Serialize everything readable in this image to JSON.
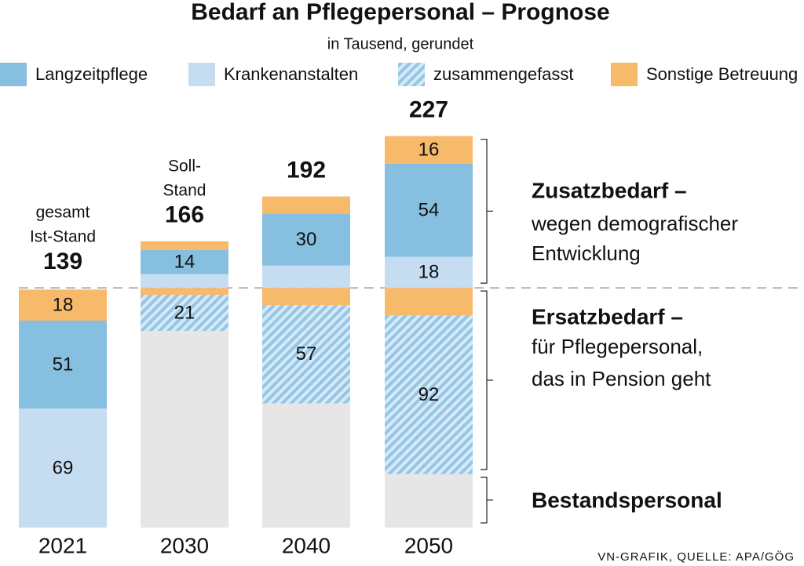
{
  "chart_data": {
    "type": "stacked-bar",
    "title": "Bedarf an Pflegepersonal – Prognose",
    "subtitle": "in Tausend, gerundet",
    "legend": [
      {
        "name": "Langzeitpflege",
        "color": "#86bfe0"
      },
      {
        "name": "Krankenanstalten",
        "color": "#c6dcf0"
      },
      {
        "name": "zusammengefasst",
        "color": "hatch"
      },
      {
        "name": "Sonstige Betreuung",
        "color": "#f7b96a"
      }
    ],
    "bars": [
      {
        "category": "2021",
        "total": 139,
        "note": [
          "gesamt",
          "Ist-Stand"
        ],
        "segments": [
          {
            "value": 69,
            "color": "#c6dcf0",
            "labeled": true
          },
          {
            "value": 51,
            "color": "#86bfe0",
            "labeled": true
          },
          {
            "value": 18,
            "color": "#f7b96a",
            "labeled": true
          }
        ]
      },
      {
        "category": "2030",
        "total": 166,
        "note": [
          "Soll-",
          "Stand"
        ],
        "segments": [
          {
            "value": 114,
            "color": "#e6e6e6",
            "labeled": false
          },
          {
            "value": 21,
            "color": "hatch",
            "labeled": true
          },
          {
            "value": 4,
            "color": "#f7b96a",
            "labeled": false
          },
          {
            "value": 8,
            "color": "#c6dcf0",
            "labeled": false
          },
          {
            "value": 14,
            "color": "#86bfe0",
            "labeled": true
          },
          {
            "value": 5,
            "color": "#f7b96a",
            "labeled": false
          }
        ]
      },
      {
        "category": "2040",
        "total": 192,
        "segments": [
          {
            "value": 72,
            "color": "#e6e6e6",
            "labeled": false
          },
          {
            "value": 57,
            "color": "hatch",
            "labeled": true
          },
          {
            "value": 10,
            "color": "#f7b96a",
            "labeled": false
          },
          {
            "value": 13,
            "color": "#c6dcf0",
            "labeled": false
          },
          {
            "value": 30,
            "color": "#86bfe0",
            "labeled": true
          },
          {
            "value": 10,
            "color": "#f7b96a",
            "labeled": false
          }
        ]
      },
      {
        "category": "2050",
        "total": 227,
        "segments": [
          {
            "value": 31,
            "color": "#e6e6e6",
            "labeled": false
          },
          {
            "value": 92,
            "color": "hatch",
            "labeled": true
          },
          {
            "value": 16,
            "color": "#f7b96a",
            "labeled": false
          },
          {
            "value": 18,
            "color": "#c6dcf0",
            "labeled": true
          },
          {
            "value": 54,
            "color": "#86bfe0",
            "labeled": true
          },
          {
            "value": 16,
            "color": "#f7b96a",
            "labeled": true
          }
        ]
      }
    ],
    "annotations": [
      {
        "title": "Zusatzbedarf –",
        "lines": [
          "wegen demografischer",
          "Entwicklung"
        ]
      },
      {
        "title": "Ersatzbedarf –",
        "lines": [
          "für Pflegepersonal,",
          "das in Pension geht"
        ]
      },
      {
        "title": "Bestandspersonal",
        "lines": []
      }
    ],
    "source": "VN-GRAFIK, QUELLE: APA/GÖG"
  }
}
